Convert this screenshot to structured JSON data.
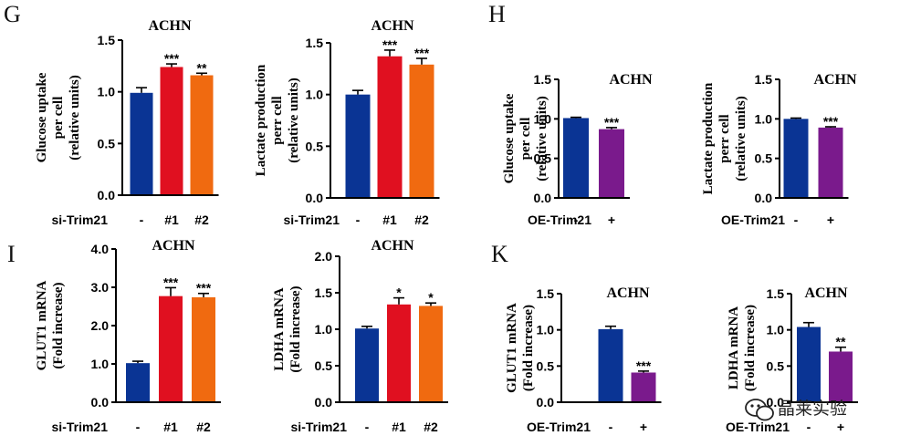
{
  "figure": {
    "watermark": "晶莱实验"
  },
  "colors": {
    "control": "#0a3494",
    "si1": "#e01020",
    "si2": "#f06a10",
    "oe": "#7a1a8c"
  },
  "chart_data": [
    {
      "panel": "G",
      "type": "bar",
      "title": "ACHN",
      "ylabel_lines": [
        "Glucose uptake",
        "per cell",
        "(relative units)"
      ],
      "ylim": [
        0,
        1.5
      ],
      "yticks": [
        "0.0",
        "0.5",
        "1.0",
        "1.5"
      ],
      "group_label": "si-Trim21",
      "categories": [
        "-",
        "#1",
        "#2"
      ],
      "values": [
        0.99,
        1.24,
        1.16
      ],
      "errors": [
        0.05,
        0.03,
        0.02
      ],
      "significance": [
        "",
        "***",
        "**"
      ],
      "bar_colors": [
        "control",
        "si1",
        "si2"
      ]
    },
    {
      "panel": "",
      "type": "bar",
      "title": "ACHN",
      "ylabel_lines": [
        "Lactate production",
        "perr cell",
        "(relative units)"
      ],
      "ylim": [
        0,
        1.5
      ],
      "yticks": [
        "0.0",
        "0.5",
        "1.0",
        "1.5"
      ],
      "group_label": "si-Trim21",
      "categories": [
        "-",
        "#1",
        "#2"
      ],
      "values": [
        1.0,
        1.37,
        1.29
      ],
      "errors": [
        0.04,
        0.06,
        0.06
      ],
      "significance": [
        "",
        "***",
        "***"
      ],
      "bar_colors": [
        "control",
        "si1",
        "si2"
      ]
    },
    {
      "panel": "H",
      "type": "bar",
      "title": "ACHN",
      "ylabel_lines": [
        "Glucose uptake",
        "per cell",
        "(relative units)"
      ],
      "ylim": [
        0,
        1.5
      ],
      "yticks": [
        "0.0",
        "0.5",
        "1.0",
        "1.5"
      ],
      "group_label": "OE-Trim21",
      "categories": [
        "-",
        "+"
      ],
      "values": [
        1.01,
        0.87
      ],
      "errors": [
        0.01,
        0.02
      ],
      "significance": [
        "",
        "***"
      ],
      "bar_colors": [
        "control",
        "oe"
      ]
    },
    {
      "panel": "",
      "type": "bar",
      "title": "ACHN",
      "ylabel_lines": [
        "Lactate production",
        "perr cell",
        "(relative units)"
      ],
      "ylim": [
        0,
        1.5
      ],
      "yticks": [
        "0.0",
        "0.5",
        "1.0",
        "1.5"
      ],
      "group_label": "OE-Trim21",
      "categories": [
        "-",
        "+"
      ],
      "values": [
        1.0,
        0.89
      ],
      "errors": [
        0.01,
        0.01
      ],
      "significance": [
        "",
        "***"
      ],
      "bar_colors": [
        "control",
        "oe"
      ]
    },
    {
      "panel": "I",
      "type": "bar",
      "title": "ACHN",
      "ylabel_lines": [
        "GLUT1 mRNA",
        "(Fold increase)"
      ],
      "ylim": [
        0,
        4.0
      ],
      "yticks": [
        "0.0",
        "1.0",
        "2.0",
        "3.0",
        "4.0"
      ],
      "group_label": "si-Trim21",
      "categories": [
        "-",
        "#1",
        "#2"
      ],
      "values": [
        1.02,
        2.77,
        2.74
      ],
      "errors": [
        0.05,
        0.22,
        0.1
      ],
      "significance": [
        "",
        "***",
        "***"
      ],
      "bar_colors": [
        "control",
        "si1",
        "si2"
      ]
    },
    {
      "panel": "",
      "type": "bar",
      "title": "ACHN",
      "ylabel_lines": [
        "LDHA mRNA",
        "(Fold increase)"
      ],
      "ylim": [
        0,
        2.0
      ],
      "yticks": [
        "0.0",
        "0.5",
        "1.0",
        "1.5",
        "2.0"
      ],
      "group_label": "si-Trim21",
      "categories": [
        "-",
        "#1",
        "#2"
      ],
      "values": [
        1.01,
        1.34,
        1.32
      ],
      "errors": [
        0.03,
        0.09,
        0.04
      ],
      "significance": [
        "",
        "*",
        "*"
      ],
      "bar_colors": [
        "control",
        "si1",
        "si2"
      ]
    },
    {
      "panel": "K",
      "type": "bar",
      "title": "ACHN",
      "ylabel_lines": [
        "GLUT1 mRNA",
        "(Fold increase)"
      ],
      "ylim": [
        0,
        1.5
      ],
      "yticks": [
        "0.0",
        "0.5",
        "1.0",
        "1.5"
      ],
      "group_label": "OE-Trim21",
      "categories": [
        "-",
        "+"
      ],
      "values": [
        1.01,
        0.41
      ],
      "errors": [
        0.04,
        0.02
      ],
      "significance": [
        "",
        "***"
      ],
      "bar_colors": [
        "control",
        "oe"
      ]
    },
    {
      "panel": "",
      "type": "bar",
      "title": "ACHN",
      "ylabel_lines": [
        "LDHA mRNA",
        "(Fold increase)"
      ],
      "ylim": [
        0,
        1.5
      ],
      "yticks": [
        "0.0",
        "0.5",
        "1.0",
        "1.5"
      ],
      "group_label": "OE-Trim21",
      "categories": [
        "-",
        "+"
      ],
      "values": [
        1.04,
        0.7
      ],
      "errors": [
        0.06,
        0.06
      ],
      "significance": [
        "",
        "**"
      ],
      "bar_colors": [
        "control",
        "oe"
      ]
    }
  ]
}
